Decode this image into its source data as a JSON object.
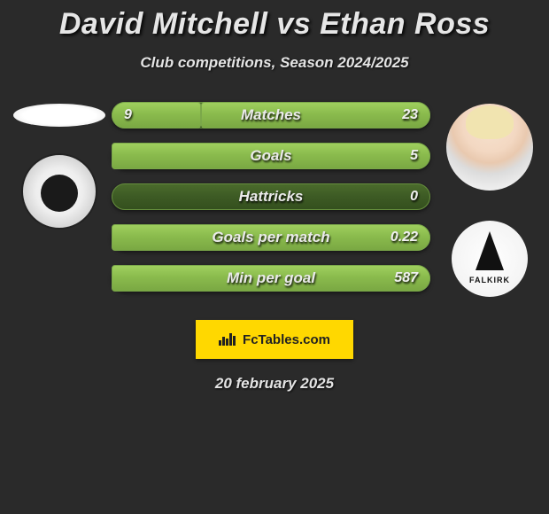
{
  "title": "David Mitchell vs Ethan Ross",
  "subtitle": "Club competitions, Season 2024/2025",
  "date": "20 february 2025",
  "brand_text": "FcTables.com",
  "brand_bg": "#ffd800",
  "left_player": {
    "club_label": ""
  },
  "right_player": {
    "club_label": "FALKIRK"
  },
  "bars": [
    {
      "label": "Matches",
      "left_val": "9",
      "right_val": "23",
      "left_pct": 28,
      "right_pct": 72,
      "dominant": "right"
    },
    {
      "label": "Goals",
      "left_val": "",
      "right_val": "5",
      "left_pct": 0,
      "right_pct": 100,
      "dominant": "right"
    },
    {
      "label": "Hattricks",
      "left_val": "",
      "right_val": "0",
      "left_pct": 0,
      "right_pct": 0,
      "dominant": "none"
    },
    {
      "label": "Goals per match",
      "left_val": "",
      "right_val": "0.22",
      "left_pct": 0,
      "right_pct": 100,
      "dominant": "right"
    },
    {
      "label": "Min per goal",
      "left_val": "",
      "right_val": "587",
      "left_pct": 0,
      "right_pct": 100,
      "dominant": "right"
    }
  ],
  "colors": {
    "bg": "#2a2a2a",
    "bar_dark": "#3d5a24",
    "bar_light": "#8abb4d"
  }
}
